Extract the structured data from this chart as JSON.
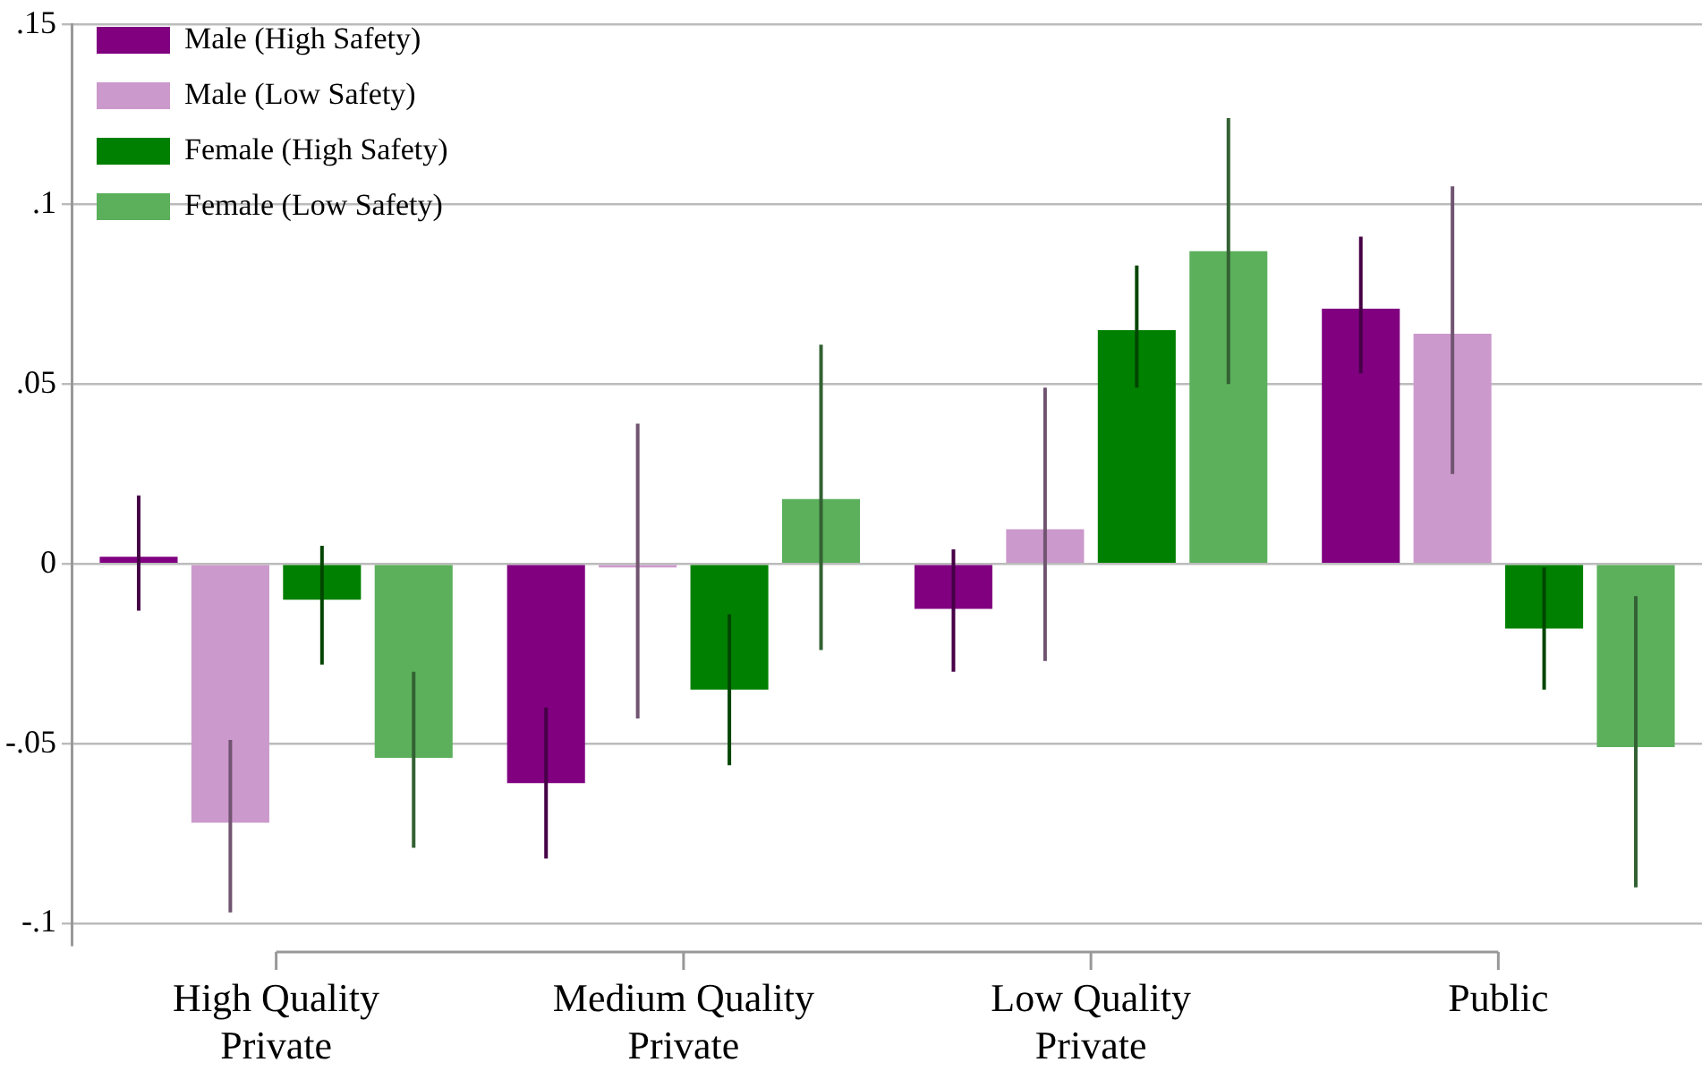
{
  "chart_data": {
    "type": "bar",
    "categories": [
      "High Quality Private",
      "Medium Quality Private",
      "Low Quality Private",
      "Public"
    ],
    "series": [
      {
        "name": "Male (High Safety)",
        "color": "#800080",
        "values": [
          0.002,
          -0.061,
          -0.0125,
          0.071
        ],
        "errors": [
          [
            -0.013,
            0.019
          ],
          [
            -0.082,
            -0.04
          ],
          [
            -0.03,
            0.004
          ],
          [
            0.053,
            0.091
          ]
        ]
      },
      {
        "name": "Male (Low Safety)",
        "color": "#cc99cc",
        "values": [
          -0.072,
          -0.001,
          0.0096,
          0.064
        ],
        "errors": [
          [
            -0.097,
            -0.049
          ],
          [
            -0.043,
            0.039
          ],
          [
            -0.027,
            0.049
          ],
          [
            0.025,
            0.105
          ]
        ]
      },
      {
        "name": "Female (High Safety)",
        "color": "#008000",
        "values": [
          -0.01,
          -0.035,
          0.065,
          -0.018
        ],
        "errors": [
          [
            -0.028,
            0.005
          ],
          [
            -0.056,
            -0.014
          ],
          [
            0.049,
            0.083
          ],
          [
            -0.035,
            -0.001
          ]
        ]
      },
      {
        "name": "Female (Low Safety)",
        "color": "#5cb05c",
        "values": [
          -0.054,
          0.018,
          0.087,
          -0.051
        ],
        "errors": [
          [
            -0.079,
            -0.03
          ],
          [
            -0.024,
            0.061
          ],
          [
            0.05,
            0.124
          ],
          [
            -0.09,
            -0.009
          ]
        ]
      }
    ],
    "ylim": [
      -0.106,
      0.15
    ],
    "yticks": [
      {
        "value": -0.1,
        "label": "-.1"
      },
      {
        "value": -0.05,
        "label": "-.05"
      },
      {
        "value": 0,
        "label": "0"
      },
      {
        "value": 0.05,
        "label": ".05"
      },
      {
        "value": 0.1,
        "label": ".1"
      },
      {
        "value": 0.15,
        "label": ".15"
      }
    ],
    "grid": "y",
    "legend": "top left"
  }
}
